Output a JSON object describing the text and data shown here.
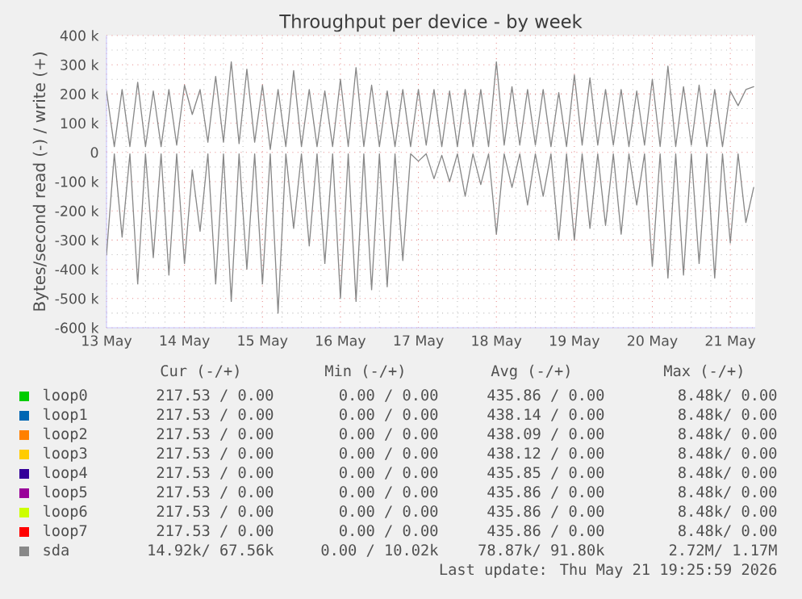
{
  "chart_data": {
    "type": "line",
    "title": "Throughput per device - by week",
    "ylabel": "Bytes/second read (-) / write (+)",
    "xlim": [
      "--05-13T00:00",
      "--05-21T07:40"
    ],
    "ylim": [
      -600000,
      400000
    ],
    "xticks": [
      {
        "value": "--05-13",
        "label": "13 May"
      },
      {
        "value": "--05-14",
        "label": "14 May"
      },
      {
        "value": "--05-15",
        "label": "15 May"
      },
      {
        "value": "--05-16",
        "label": "16 May"
      },
      {
        "value": "--05-17",
        "label": "17 May"
      },
      {
        "value": "--05-18",
        "label": "18 May"
      },
      {
        "value": "--05-19",
        "label": "19 May"
      },
      {
        "value": "--05-20",
        "label": "20 May"
      },
      {
        "value": "--05-21",
        "label": "21 May"
      }
    ],
    "yticks": [
      {
        "value": -600000,
        "label": "-600 k"
      },
      {
        "value": -500000,
        "label": "-500 k"
      },
      {
        "value": -400000,
        "label": "-400 k"
      },
      {
        "value": -300000,
        "label": "-300 k"
      },
      {
        "value": -200000,
        "label": "-200 k"
      },
      {
        "value": -100000,
        "label": "-100 k"
      },
      0,
      {
        "value": 100000,
        "label": "100 k"
      },
      {
        "value": 200000,
        "label": "200 k"
      },
      {
        "value": 300000,
        "label": "300 k"
      },
      {
        "value": 400000,
        "label": "400 k"
      }
    ],
    "grid": true,
    "legend": "bottom",
    "series": [
      {
        "name": "loop0",
        "color": "#00cc00"
      },
      {
        "name": "loop1",
        "color": "#0066b3"
      },
      {
        "name": "loop2",
        "color": "#ff8000"
      },
      {
        "name": "loop3",
        "color": "#ffcc00"
      },
      {
        "name": "loop4",
        "color": "#330099"
      },
      {
        "name": "loop5",
        "color": "#990099"
      },
      {
        "name": "loop6",
        "color": "#ccff00"
      },
      {
        "name": "loop7",
        "color": "#ff0000"
      },
      {
        "name": "sda",
        "color": "#888888",
        "x": [
          "--05-13T00:00",
          "--05-13T02:24",
          "--05-13T04:48",
          "--05-13T07:12",
          "--05-13T09:36",
          "--05-13T12:00",
          "--05-13T14:24",
          "--05-13T16:48",
          "--05-13T19:12",
          "--05-13T21:36",
          "--05-14T00:00",
          "--05-14T02:24",
          "--05-14T04:48",
          "--05-14T07:12",
          "--05-14T09:36",
          "--05-14T12:00",
          "--05-14T14:24",
          "--05-14T16:48",
          "--05-14T19:12",
          "--05-14T21:36",
          "--05-15T00:00",
          "--05-15T02:24",
          "--05-15T04:48",
          "--05-15T07:12",
          "--05-15T09:36",
          "--05-15T12:00",
          "--05-15T14:24",
          "--05-15T16:48",
          "--05-15T19:12",
          "--05-15T21:36",
          "--05-16T00:00",
          "--05-16T02:24",
          "--05-16T04:48",
          "--05-16T07:12",
          "--05-16T09:36",
          "--05-16T12:00",
          "--05-16T14:24",
          "--05-16T16:48",
          "--05-16T19:12",
          "--05-16T21:36",
          "--05-17T00:00",
          "--05-17T02:24",
          "--05-17T04:48",
          "--05-17T07:12",
          "--05-17T09:36",
          "--05-17T12:00",
          "--05-17T14:24",
          "--05-17T16:48",
          "--05-17T19:12",
          "--05-17T21:36",
          "--05-18T00:00",
          "--05-18T02:24",
          "--05-18T04:48",
          "--05-18T07:12",
          "--05-18T09:36",
          "--05-18T12:00",
          "--05-18T14:24",
          "--05-18T16:48",
          "--05-18T19:12",
          "--05-18T21:36",
          "--05-19T00:00",
          "--05-19T02:24",
          "--05-19T04:48",
          "--05-19T07:12",
          "--05-19T09:36",
          "--05-19T12:00",
          "--05-19T14:24",
          "--05-19T16:48",
          "--05-19T19:12",
          "--05-19T21:36",
          "--05-20T00:00",
          "--05-20T02:24",
          "--05-20T04:48",
          "--05-20T07:12",
          "--05-20T09:36",
          "--05-20T12:00",
          "--05-20T14:24",
          "--05-20T16:48",
          "--05-20T19:12",
          "--05-20T21:36",
          "--05-21T00:00",
          "--05-21T02:24",
          "--05-21T04:48",
          "--05-21T07:12"
        ],
        "values": [
          210000,
          20000,
          215000,
          20000,
          240000,
          20000,
          210000,
          20000,
          215000,
          25000,
          230000,
          130000,
          215000,
          35000,
          260000,
          35000,
          310000,
          30000,
          285000,
          35000,
          230000,
          10000,
          215000,
          20000,
          280000,
          20000,
          215000,
          20000,
          210000,
          20000,
          250000,
          20000,
          290000,
          20000,
          230000,
          20000,
          210000,
          20000,
          215000,
          20000,
          215000,
          25000,
          215000,
          20000,
          210000,
          20000,
          215000,
          20000,
          215000,
          20000,
          310000,
          25000,
          225000,
          25000,
          215000,
          25000,
          215000,
          20000,
          205000,
          20000,
          265000,
          25000,
          255000,
          25000,
          215000,
          25000,
          215000,
          20000,
          210000,
          25000,
          250000,
          20000,
          295000,
          20000,
          225000,
          25000,
          230000,
          20000,
          215000,
          20000,
          210000,
          160000,
          215000,
          225000
        ]
      },
      {
        "color": "#888888",
        "x": [
          "--05-13T00:00",
          "--05-13T02:24",
          "--05-13T04:48",
          "--05-13T07:12",
          "--05-13T09:36",
          "--05-13T12:00",
          "--05-13T14:24",
          "--05-13T16:48",
          "--05-13T19:12",
          "--05-13T21:36",
          "--05-14T00:00",
          "--05-14T02:24",
          "--05-14T04:48",
          "--05-14T07:12",
          "--05-14T09:36",
          "--05-14T12:00",
          "--05-14T14:24",
          "--05-14T16:48",
          "--05-14T19:12",
          "--05-14T21:36",
          "--05-15T00:00",
          "--05-15T02:24",
          "--05-15T04:48",
          "--05-15T07:12",
          "--05-15T09:36",
          "--05-15T12:00",
          "--05-15T14:24",
          "--05-15T16:48",
          "--05-15T19:12",
          "--05-15T21:36",
          "--05-16T00:00",
          "--05-16T02:24",
          "--05-16T04:48",
          "--05-16T07:12",
          "--05-16T09:36",
          "--05-16T12:00",
          "--05-16T14:24",
          "--05-16T16:48",
          "--05-16T19:12",
          "--05-16T21:36",
          "--05-17T00:00",
          "--05-17T02:24",
          "--05-17T04:48",
          "--05-17T07:12",
          "--05-17T09:36",
          "--05-17T12:00",
          "--05-17T14:24",
          "--05-17T16:48",
          "--05-17T19:12",
          "--05-17T21:36",
          "--05-18T00:00",
          "--05-18T02:24",
          "--05-18T04:48",
          "--05-18T07:12",
          "--05-18T09:36",
          "--05-18T12:00",
          "--05-18T14:24",
          "--05-18T16:48",
          "--05-18T19:12",
          "--05-18T21:36",
          "--05-19T00:00",
          "--05-19T02:24",
          "--05-19T04:48",
          "--05-19T07:12",
          "--05-19T09:36",
          "--05-19T12:00",
          "--05-19T14:24",
          "--05-19T16:48",
          "--05-19T19:12",
          "--05-19T21:36",
          "--05-20T00:00",
          "--05-20T02:24",
          "--05-20T04:48",
          "--05-20T07:12",
          "--05-20T09:36",
          "--05-20T12:00",
          "--05-20T14:24",
          "--05-20T16:48",
          "--05-20T19:12",
          "--05-20T21:36",
          "--05-21T00:00",
          "--05-21T02:24",
          "--05-21T04:48",
          "--05-21T07:12"
        ],
        "values": [
          -350000,
          -5000,
          -290000,
          -5000,
          -450000,
          -5000,
          -360000,
          -5000,
          -420000,
          -5000,
          -380000,
          -60000,
          -270000,
          -5000,
          -450000,
          -5000,
          -510000,
          -5000,
          -400000,
          -5000,
          -450000,
          -5000,
          -550000,
          -5000,
          -260000,
          -5000,
          -320000,
          -5000,
          -380000,
          -5000,
          -500000,
          -5000,
          -510000,
          -5000,
          -470000,
          -5000,
          -460000,
          -5000,
          -370000,
          -5000,
          -30000,
          -5000,
          -90000,
          -10000,
          -100000,
          -5000,
          -150000,
          -5000,
          -110000,
          -5000,
          -280000,
          -5000,
          -120000,
          -5000,
          -180000,
          -5000,
          -150000,
          -5000,
          -300000,
          -5000,
          -300000,
          -5000,
          -260000,
          -5000,
          -250000,
          -5000,
          -280000,
          -5000,
          -180000,
          -5000,
          -390000,
          -5000,
          -430000,
          -5000,
          -420000,
          -5000,
          -380000,
          -5000,
          -430000,
          -5000,
          -310000,
          -5000,
          -240000,
          -120000
        ]
      }
    ],
    "annotations": [
      "Cur (-/+)",
      "Min (-/+)",
      "Avg (-/+)",
      "Max (-/+)",
      "217.53 / 0.00",
      "0.00 / 0.00",
      "435.86 / 0.00",
      "8.48k/ 0.00",
      "217.53 / 0.00",
      "0.00 / 0.00",
      "438.14 / 0.00",
      "8.48k/ 0.00",
      "217.53 / 0.00",
      "0.00 / 0.00",
      "438.09 / 0.00",
      "8.48k/ 0.00",
      "217.53 / 0.00",
      "0.00 / 0.00",
      "438.12 / 0.00",
      "8.48k/ 0.00",
      "217.53 / 0.00",
      "0.00 / 0.00",
      "435.85 / 0.00",
      "8.48k/ 0.00",
      "217.53 / 0.00",
      "0.00 / 0.00",
      "435.86 / 0.00",
      "8.48k/ 0.00",
      "217.53 / 0.00",
      "0.00 / 0.00",
      "435.86 / 0.00",
      "8.48k/ 0.00",
      "217.53 / 0.00",
      "0.00 / 0.00",
      "435.86 / 0.00",
      "8.48k/ 0.00",
      "14.92k/ 67.56k",
      "0.00 / 10.02k",
      "78.87k/ 91.80k",
      "2.72M/ 1.17M",
      "Last update: Thu May 21 19:25:59 2026"
    ]
  }
}
